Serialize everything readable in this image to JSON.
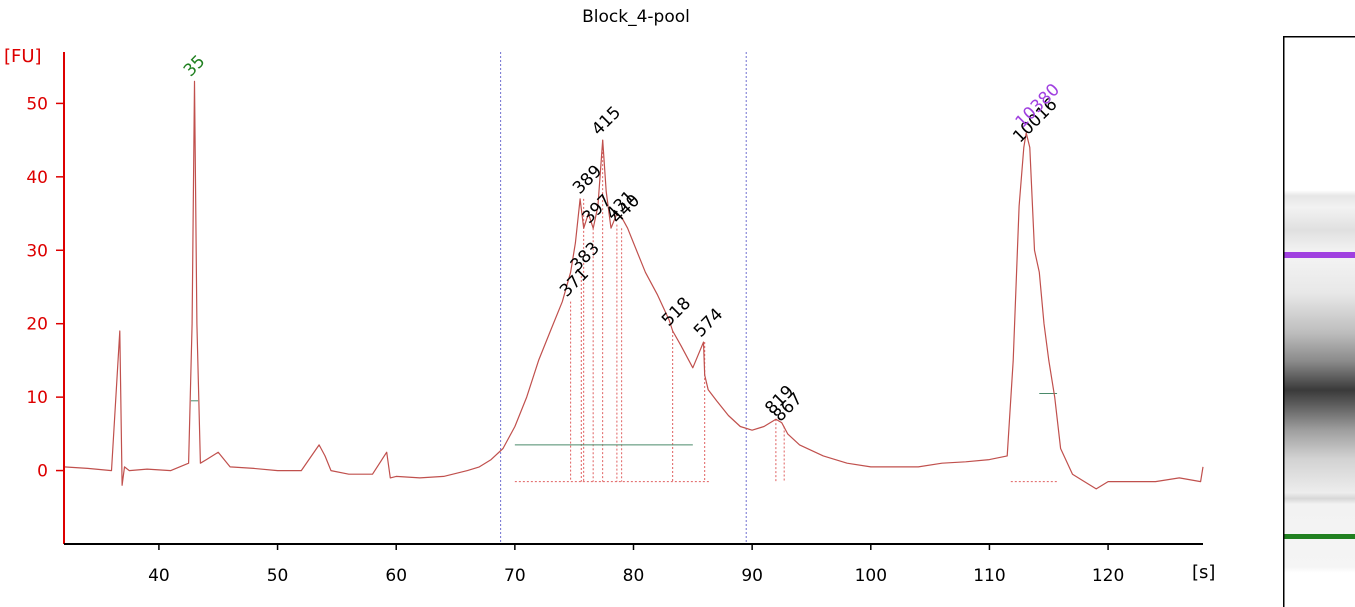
{
  "chart_data": {
    "type": "line",
    "title": "Block_4-pool",
    "xlabel": "[s]",
    "ylabel": "[FU]",
    "xlim": [
      32,
      128
    ],
    "ylim": [
      -10,
      57
    ],
    "xticks": [
      40,
      50,
      60,
      70,
      80,
      90,
      100,
      110,
      120
    ],
    "yticks": [
      0,
      10,
      20,
      30,
      40,
      50
    ],
    "grid": false,
    "region_markers_x": [
      68.8,
      89.5
    ],
    "series": [
      {
        "color": "#c0504d",
        "x": [
          32,
          34,
          36,
          36.7,
          36.9,
          37.1,
          37.5,
          39,
          41,
          42.5,
          42.8,
          43.0,
          43.2,
          43.5,
          44,
          45,
          46,
          48,
          50,
          52,
          53.5,
          54,
          54.5,
          56,
          58,
          59.2,
          59.5,
          60,
          62,
          64,
          66,
          67,
          68,
          69,
          70,
          71,
          72,
          73,
          74,
          74.7,
          75.1,
          75.5,
          75.8,
          76.2,
          76.6,
          77.0,
          77.4,
          77.7,
          78.1,
          78.6,
          79.0,
          79.5,
          80,
          81,
          82,
          83,
          83.3,
          84,
          85,
          85.9,
          86.0,
          86.3,
          87,
          88,
          89,
          90,
          91,
          92,
          92.5,
          93,
          94,
          96,
          98,
          100,
          102,
          104,
          106,
          108,
          110,
          111.5,
          112,
          112.5,
          112.9,
          113.1,
          113.4,
          113.8,
          114.2,
          114.6,
          115,
          115.5,
          116,
          117,
          118,
          119,
          120,
          122,
          124,
          126,
          127.8,
          128
        ],
        "y": [
          0.5,
          0.3,
          0.0,
          19,
          -2,
          0.5,
          0.0,
          0.2,
          0.0,
          1,
          20,
          53,
          20,
          1,
          1.5,
          2.5,
          0.5,
          0.3,
          0.0,
          0.0,
          3.5,
          2,
          0,
          -0.5,
          -0.5,
          2.5,
          -1,
          -0.8,
          -1.0,
          -0.8,
          0.0,
          0.5,
          1.5,
          3,
          6,
          10,
          15,
          19,
          23,
          27,
          31,
          37,
          33,
          35,
          33,
          36,
          45,
          38,
          33,
          35,
          34.5,
          33,
          31,
          27,
          24,
          20.5,
          19,
          17,
          14,
          17.5,
          13,
          11,
          9.5,
          7.5,
          6,
          5.5,
          6,
          7,
          6.5,
          5,
          3.5,
          2,
          1.0,
          0.5,
          0.5,
          0.5,
          1.0,
          1.2,
          1.5,
          2,
          15,
          36,
          44,
          46,
          44,
          30,
          27,
          20,
          15,
          10,
          3,
          -0.5,
          -1.5,
          -2.5,
          -1.5,
          -1.5,
          -1.5,
          -1.0,
          -1.5,
          0.5
        ]
      }
    ],
    "peaks": [
      {
        "label": "35",
        "x": 43.0,
        "y": 53,
        "color": "#208020"
      },
      {
        "label": "371",
        "x": 74.7,
        "y": 23,
        "color": "#000000"
      },
      {
        "label": "383",
        "x": 75.6,
        "y": 26.5,
        "color": "#000000"
      },
      {
        "label": "389",
        "x": 75.8,
        "y": 37,
        "color": "#000000"
      },
      {
        "label": "397",
        "x": 76.6,
        "y": 33,
        "color": "#000000"
      },
      {
        "label": "415",
        "x": 77.4,
        "y": 45,
        "color": "#000000"
      },
      {
        "label": "431",
        "x": 78.6,
        "y": 33.5,
        "color": "#000000"
      },
      {
        "label": "440",
        "x": 79.0,
        "y": 33,
        "color": "#000000"
      },
      {
        "label": "518",
        "x": 83.3,
        "y": 19,
        "color": "#000000"
      },
      {
        "label": "574",
        "x": 86.0,
        "y": 17.5,
        "color": "#000000"
      },
      {
        "label": "819",
        "x": 92.0,
        "y": 7,
        "color": "#000000"
      },
      {
        "label": "867",
        "x": 92.7,
        "y": 6,
        "color": "#000000"
      },
      {
        "label": "10016",
        "x": 112.9,
        "y": 44,
        "color": "#000000"
      },
      {
        "label": "10380",
        "x": 113.1,
        "y": 46,
        "color": "#a040e0"
      }
    ]
  },
  "gel": {
    "upper_marker_color": "#a040e0",
    "lower_marker_color": "#208020"
  }
}
